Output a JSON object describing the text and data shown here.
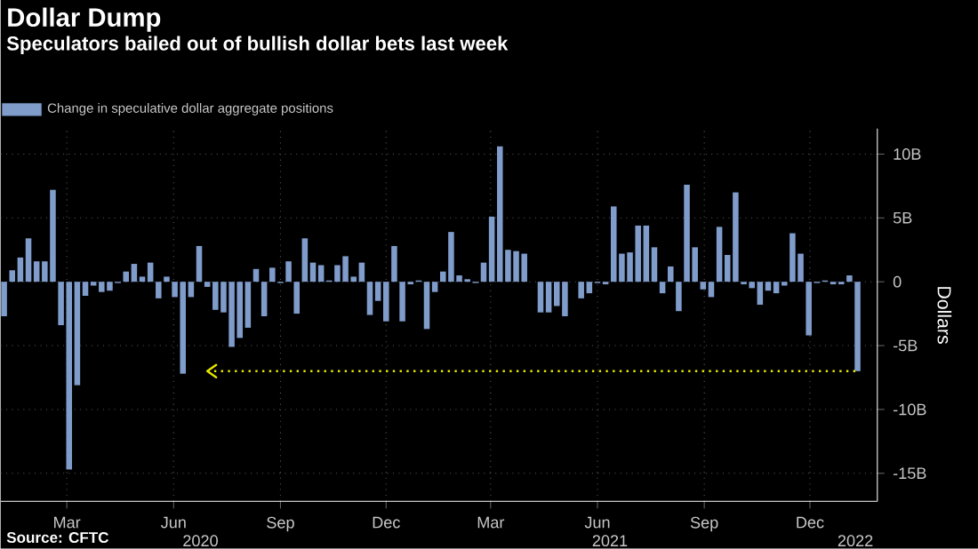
{
  "chart_data": {
    "type": "bar",
    "title": "Dollar Dump",
    "subtitle": "Speculators bailed out of bullish dollar bets last week",
    "ylabel": "Dollars",
    "x": [
      "2020-01-07",
      "2020-01-14",
      "2020-01-21",
      "2020-01-28",
      "2020-02-04",
      "2020-02-11",
      "2020-02-18",
      "2020-02-25",
      "2020-03-03",
      "2020-03-10",
      "2020-03-17",
      "2020-03-24",
      "2020-03-31",
      "2020-04-07",
      "2020-04-14",
      "2020-04-21",
      "2020-04-28",
      "2020-05-05",
      "2020-05-12",
      "2020-05-19",
      "2020-05-26",
      "2020-06-02",
      "2020-06-09",
      "2020-06-16",
      "2020-06-23",
      "2020-06-30",
      "2020-07-07",
      "2020-07-14",
      "2020-07-21",
      "2020-07-28",
      "2020-08-04",
      "2020-08-11",
      "2020-08-18",
      "2020-08-25",
      "2020-09-01",
      "2020-09-08",
      "2020-09-15",
      "2020-09-22",
      "2020-09-29",
      "2020-10-06",
      "2020-10-13",
      "2020-10-20",
      "2020-10-27",
      "2020-11-03",
      "2020-11-10",
      "2020-11-17",
      "2020-11-24",
      "2020-12-01",
      "2020-12-08",
      "2020-12-15",
      "2020-12-22",
      "2020-12-29",
      "2021-01-05",
      "2021-01-12",
      "2021-01-19",
      "2021-01-26",
      "2021-02-02",
      "2021-02-09",
      "2021-02-16",
      "2021-02-23",
      "2021-03-02",
      "2021-03-09",
      "2021-03-16",
      "2021-03-23",
      "2021-03-30",
      "2021-04-06",
      "2021-04-13",
      "2021-04-20",
      "2021-04-27",
      "2021-05-04",
      "2021-05-11",
      "2021-05-18",
      "2021-05-25",
      "2021-06-01",
      "2021-06-08",
      "2021-06-15",
      "2021-06-22",
      "2021-06-29",
      "2021-07-06",
      "2021-07-13",
      "2021-07-20",
      "2021-07-27",
      "2021-08-03",
      "2021-08-10",
      "2021-08-17",
      "2021-08-24",
      "2021-08-31",
      "2021-09-07",
      "2021-09-14",
      "2021-09-21",
      "2021-09-28",
      "2021-10-05",
      "2021-10-12",
      "2021-10-19",
      "2021-10-26",
      "2021-11-02",
      "2021-11-09",
      "2021-11-16",
      "2021-11-23",
      "2021-11-30",
      "2021-12-07",
      "2021-12-14",
      "2021-12-21",
      "2021-12-28",
      "2022-01-04",
      "2022-01-11"
    ],
    "series": [
      {
        "name": "Change in speculative dollar aggregate positions",
        "color": "#7f9ccb",
        "values": [
          -2.7,
          0.9,
          1.9,
          3.4,
          1.6,
          1.6,
          7.2,
          -3.4,
          -14.7,
          -8.1,
          -1.1,
          -0.3,
          -0.8,
          -0.7,
          -0.1,
          0.8,
          1.4,
          0.4,
          1.5,
          -1.3,
          0.4,
          -1.2,
          -7.2,
          -1.2,
          2.8,
          -0.4,
          -2.2,
          -2.4,
          -5.1,
          -4.4,
          -3.6,
          1.0,
          -2.7,
          1.1,
          -0.1,
          1.6,
          -2.5,
          3.4,
          1.5,
          1.3,
          0.1,
          1.3,
          2.0,
          0.4,
          1.5,
          -2.6,
          -1.5,
          -3.1,
          2.8,
          -3.1,
          -0.2,
          0.1,
          -3.7,
          -0.8,
          0.8,
          3.9,
          0.5,
          0.2,
          -0.1,
          1.5,
          5.1,
          10.6,
          2.5,
          2.4,
          2.2,
          0,
          -2.4,
          -2.4,
          -1.9,
          -2.7,
          0,
          -1.3,
          -0.9,
          -0.1,
          -0.2,
          5.9,
          2.2,
          2.3,
          4.4,
          4.4,
          2.7,
          -0.9,
          1.2,
          -2.3,
          7.6,
          2.7,
          -0.6,
          -1.2,
          4.3,
          2.1,
          7.0,
          -0.2,
          -0.5,
          -1.8,
          -0.7,
          -0.9,
          -0.3,
          3.8,
          2.2,
          -4.2,
          -0.1,
          0.1,
          -0.2,
          -0.2,
          0.5,
          -7.0
        ]
      },
      {
        "type": "line",
        "color": "#e5e500",
        "line_style": "dotted",
        "marker": "none",
        "x": [
          "2020-06-30",
          "2022-01-11"
        ],
        "values": [
          -7,
          -7
        ]
      }
    ],
    "xlim": [
      "2020-01-04",
      "2022-01-28"
    ],
    "ylim": [
      -17.2,
      12
    ],
    "xticks": [
      {
        "value": "2020-03-01",
        "label": "Mar"
      },
      {
        "value": "2020-06-01",
        "label": "Jun"
      },
      {
        "value": "2020-09-01",
        "label": "Sep"
      },
      {
        "value": "2020-12-01",
        "label": "Dec"
      },
      {
        "value": "2021-03-01",
        "label": "Mar"
      },
      {
        "value": "2021-06-01",
        "label": "Jun"
      },
      {
        "value": "2021-09-01",
        "label": "Sep"
      },
      {
        "value": "2021-12-01",
        "label": "Dec"
      }
    ],
    "yticks": [
      {
        "value": -15,
        "label": "-15B"
      },
      {
        "value": -10,
        "label": "-10B"
      },
      {
        "value": -5,
        "label": "-5B"
      },
      0,
      {
        "value": 5,
        "label": "5B"
      },
      {
        "value": 10,
        "label": "10B"
      }
    ],
    "grid": true,
    "legend": "top left",
    "annotations": [
      "2020",
      "2021",
      "2022",
      "Source: CFTC"
    ]
  }
}
